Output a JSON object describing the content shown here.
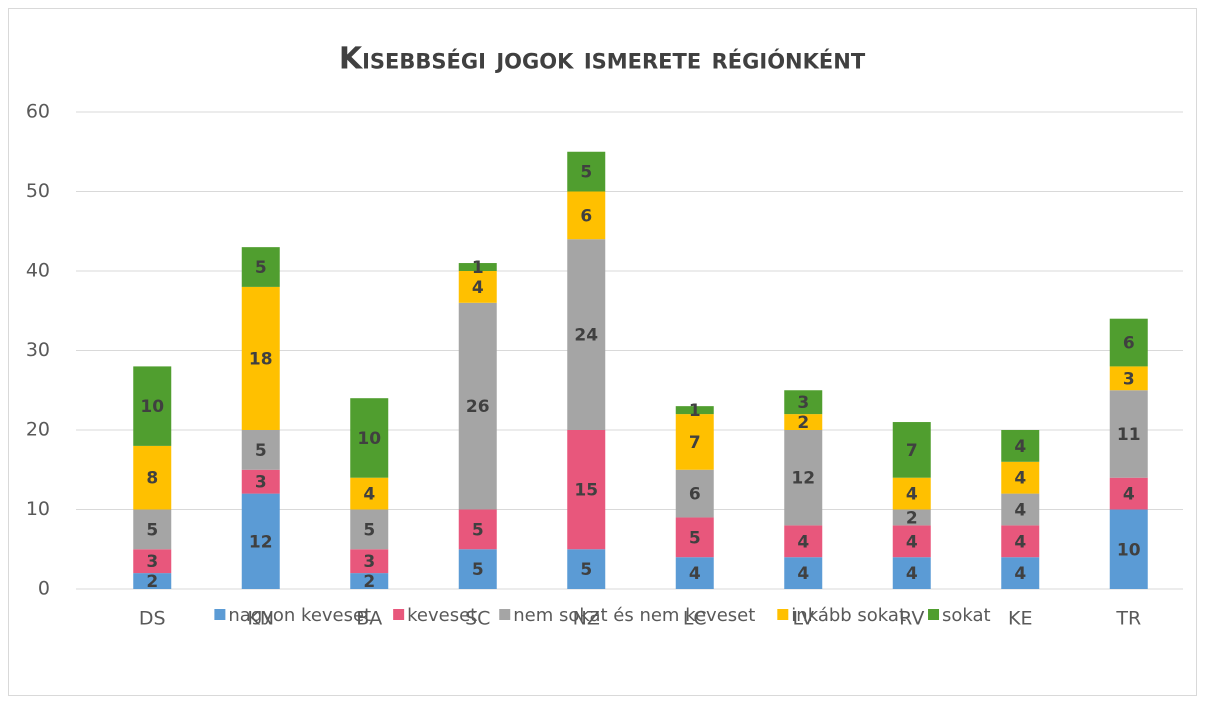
{
  "chart_data": {
    "type": "stacked_bar",
    "title": "Kisebbségi jogok ismerete régiónként",
    "categories": [
      "DS",
      "KN",
      "BA",
      "SC",
      "NZ",
      "LC",
      "LV",
      "RV",
      "KE",
      "TR"
    ],
    "series": [
      {
        "name": "nagyon keveset",
        "color": "#5b9bd5",
        "values": [
          2,
          12,
          2,
          5,
          5,
          4,
          4,
          4,
          4,
          10
        ]
      },
      {
        "name": "keveset",
        "color": "#e8577c",
        "values": [
          3,
          3,
          3,
          5,
          15,
          5,
          4,
          4,
          4,
          4
        ]
      },
      {
        "name": "nem sokat és nem keveset",
        "color": "#a5a5a5",
        "values": [
          5,
          5,
          5,
          26,
          24,
          6,
          12,
          2,
          4,
          11
        ]
      },
      {
        "name": "inkább sokat",
        "color": "#ffc000",
        "values": [
          8,
          18,
          4,
          4,
          6,
          7,
          2,
          4,
          4,
          3
        ]
      },
      {
        "name": "sokat",
        "color": "#509e2f",
        "values": [
          10,
          5,
          10,
          1,
          5,
          1,
          3,
          7,
          4,
          6
        ]
      }
    ],
    "ylim": [
      0,
      60
    ],
    "yticks": [
      0,
      10,
      20,
      30,
      40,
      50,
      60
    ],
    "grid": true,
    "legend": "bottom"
  }
}
